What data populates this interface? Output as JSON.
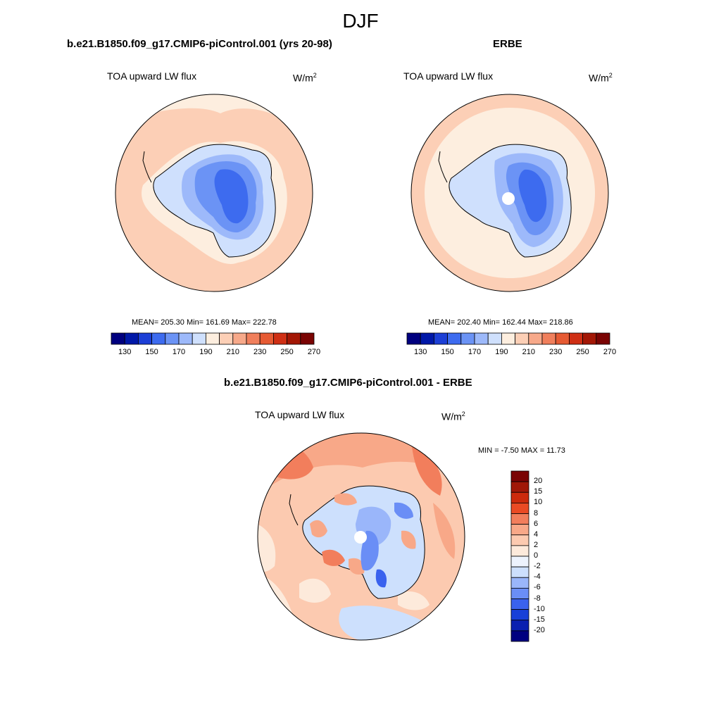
{
  "season": "DJF",
  "colors": {
    "abs_levels": [
      "#00007f",
      "#0018a8",
      "#1c3fd6",
      "#3d6bef",
      "#6b93f5",
      "#9db9fa",
      "#cfe0fd",
      "#fdeedf",
      "#fccfb6",
      "#f7a98a",
      "#f07f5c",
      "#e65a33",
      "#cf2f14",
      "#a31705",
      "#7a0403"
    ],
    "diff_levels": [
      "#000080",
      "#0a20b0",
      "#1840d8",
      "#3a62ee",
      "#6a8ef6",
      "#9ab6fa",
      "#cde0fd",
      "#edf3fd",
      "#fdeadb",
      "#fccab0",
      "#f8a888",
      "#f27e5c",
      "#ea4a24",
      "#cc2a0c",
      "#a01808",
      "#7a0404"
    ]
  },
  "panels": [
    {
      "title": "b.e21.B1850.f09_g17.CMIP6-piControl.001 (yrs 20-98)",
      "variable": "TOA upward LW flux",
      "units_base": "W/m",
      "units_exp": "2",
      "stats": "MEAN= 205.30  Min= 161.69  Max= 222.78",
      "colorbar_ticks": [
        "130",
        "150",
        "170",
        "190",
        "210",
        "230",
        "250",
        "270"
      ]
    },
    {
      "title": "ERBE",
      "variable": "TOA upward LW flux",
      "units_base": "W/m",
      "units_exp": "2",
      "stats": "MEAN= 202.40  Min= 162.44  Max= 218.86",
      "colorbar_ticks": [
        "130",
        "150",
        "170",
        "190",
        "210",
        "230",
        "250",
        "270"
      ]
    },
    {
      "title": "b.e21.B1850.f09_g17.CMIP6-piControl.001 - ERBE",
      "variable": "TOA upward LW flux",
      "units_base": "W/m",
      "units_exp": "2",
      "stats": "MIN =  -7.50 MAX =  11.73",
      "colorbar_ticks": [
        "20",
        "15",
        "10",
        "8",
        "6",
        "4",
        "2",
        "0",
        "-2",
        "-4",
        "-6",
        "-8",
        "-10",
        "-15",
        "-20"
      ]
    }
  ]
}
